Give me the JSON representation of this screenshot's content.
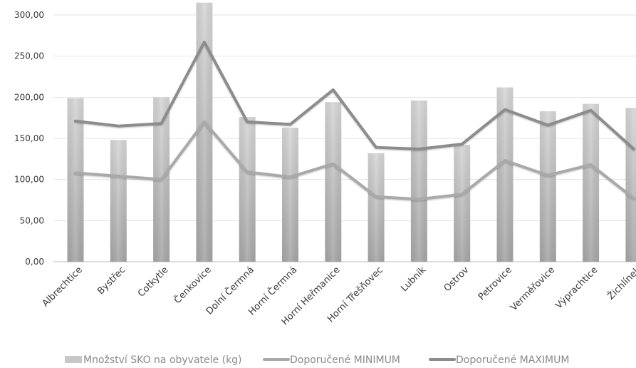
{
  "chart_data": {
    "type": "bar",
    "title": "",
    "xlabel": "",
    "ylabel": "",
    "ylim": [
      0,
      300
    ],
    "yticks": [
      "0,00",
      "50,00",
      "100,00",
      "150,00",
      "200,00",
      "250,00",
      "300,00"
    ],
    "grid": true,
    "legend_position": "bottom",
    "categories": [
      "Albrechtice",
      "Bystřec",
      "Cotkytle",
      "Čenkovice",
      "Dolní Čermná",
      "Horní Čermná",
      "Horní Heřmanice",
      "Horní Třešňovec",
      "Lubník",
      "Ostrov",
      "Petrovice",
      "Verměřovice",
      "Výprachtice",
      "Žichlínek"
    ],
    "series": [
      {
        "name": "Množství SKO na obyvatele  (kg)",
        "kind": "bar",
        "color": "#c8c8c8",
        "values": [
          199,
          148,
          200,
          315,
          176,
          163,
          194,
          132,
          196,
          142,
          212,
          183,
          192,
          187
        ]
      },
      {
        "name": "Doporučené MINIMUM",
        "kind": "line",
        "color": "#a9a9a9",
        "values": [
          108,
          104,
          100,
          170,
          109,
          103,
          119,
          79,
          76,
          82,
          123,
          105,
          118,
          77
        ]
      },
      {
        "name": "Doporučené MAXIMUM",
        "kind": "line",
        "color": "#8c8c8c",
        "values": [
          171,
          165,
          168,
          267,
          170,
          167,
          209,
          139,
          137,
          143,
          185,
          166,
          184,
          137
        ]
      }
    ]
  }
}
